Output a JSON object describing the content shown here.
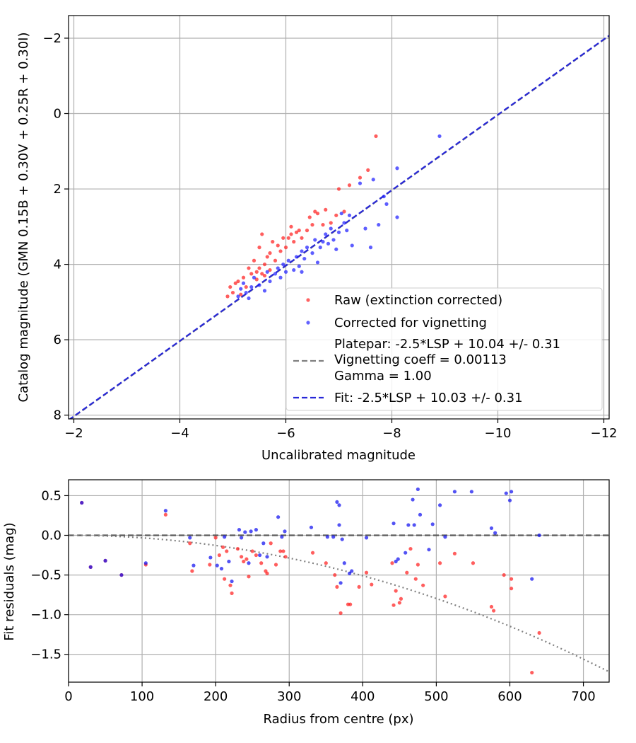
{
  "chart_data": [
    {
      "type": "scatter",
      "xlabel": "Uncalibrated magnitude",
      "ylabel": "Catalog magnitude (GMN 0.15B + 0.30V + 0.25R + 0.30I)",
      "xlim": [
        -1.9,
        -12.1
      ],
      "ylim": [
        8.1,
        -2.6
      ],
      "xticks": [
        -2,
        -4,
        -6,
        -8,
        -10,
        -12
      ],
      "xtick_labels": [
        "−2",
        "−4",
        "−6",
        "−8",
        "−10",
        "−12"
      ],
      "yticks": [
        -2,
        0,
        2,
        4,
        6,
        8
      ],
      "ytick_labels": [
        "−2",
        "0",
        "2",
        "4",
        "6",
        "8"
      ],
      "grid": true,
      "legend": {
        "position": "bottom-right",
        "entries": [
          "Raw (extinction corrected)",
          "Corrected for vignetting",
          "Platepar: -2.5*LSP + 10.04 +/- 0.31",
          "Vignetting coeff = 0.00113",
          "Gamma = 1.00",
          "Fit: -2.5*LSP + 10.03 +/- 0.31"
        ]
      },
      "series": [
        {
          "name": "Raw (extinction corrected)",
          "color": "#ff2020",
          "points": [
            [
              -7.7,
              0.6
            ],
            [
              -7.55,
              1.5
            ],
            [
              -7.4,
              1.7
            ],
            [
              -7.2,
              1.9
            ],
            [
              -7.0,
              2.0
            ],
            [
              -7.1,
              2.6
            ],
            [
              -6.95,
              2.7
            ],
            [
              -6.85,
              2.9
            ],
            [
              -6.75,
              2.55
            ],
            [
              -6.7,
              2.95
            ],
            [
              -6.6,
              2.65
            ],
            [
              -6.55,
              2.6
            ],
            [
              -6.5,
              2.95
            ],
            [
              -6.45,
              2.75
            ],
            [
              -6.4,
              3.1
            ],
            [
              -6.3,
              3.3
            ],
            [
              -6.25,
              3.1
            ],
            [
              -6.2,
              3.15
            ],
            [
              -6.15,
              3.4
            ],
            [
              -6.1,
              3.2
            ],
            [
              -6.1,
              3.0
            ],
            [
              -6.05,
              3.3
            ],
            [
              -6.0,
              3.55
            ],
            [
              -5.95,
              3.3
            ],
            [
              -5.9,
              3.65
            ],
            [
              -5.85,
              3.5
            ],
            [
              -5.8,
              3.9
            ],
            [
              -5.75,
              3.4
            ],
            [
              -5.7,
              3.7
            ],
            [
              -5.7,
              4.15
            ],
            [
              -5.65,
              3.8
            ],
            [
              -5.6,
              4.0
            ],
            [
              -5.55,
              4.25
            ],
            [
              -5.5,
              3.55
            ],
            [
              -5.5,
              4.1
            ],
            [
              -5.45,
              4.4
            ],
            [
              -5.4,
              3.9
            ],
            [
              -5.35,
              4.25
            ],
            [
              -5.3,
              4.1
            ],
            [
              -5.25,
              4.6
            ],
            [
              -5.2,
              4.35
            ],
            [
              -5.15,
              4.8
            ],
            [
              -5.1,
              4.45
            ],
            [
              -5.05,
              4.5
            ],
            [
              -5.0,
              4.75
            ],
            [
              -4.95,
              4.6
            ],
            [
              -4.9,
              4.85
            ],
            [
              -5.45,
              4.2
            ],
            [
              -5.6,
              4.3
            ],
            [
              -5.55,
              3.2
            ]
          ]
        },
        {
          "name": "Corrected for vignetting",
          "color": "#2020ff",
          "points": [
            [
              -8.9,
              0.6
            ],
            [
              -8.1,
              1.45
            ],
            [
              -7.65,
              1.75
            ],
            [
              -7.4,
              1.85
            ],
            [
              -7.85,
              2.2
            ],
            [
              -7.9,
              2.4
            ],
            [
              -8.1,
              2.75
            ],
            [
              -7.75,
              2.95
            ],
            [
              -7.5,
              3.05
            ],
            [
              -7.2,
              2.7
            ],
            [
              -7.15,
              3.1
            ],
            [
              -7.1,
              2.9
            ],
            [
              -7.05,
              2.65
            ],
            [
              -7.0,
              3.15
            ],
            [
              -6.9,
              3.35
            ],
            [
              -6.85,
              3.05
            ],
            [
              -6.8,
              3.45
            ],
            [
              -6.75,
              3.2
            ],
            [
              -6.65,
              3.55
            ],
            [
              -6.55,
              3.35
            ],
            [
              -6.5,
              3.7
            ],
            [
              -6.4,
              3.55
            ],
            [
              -6.35,
              3.85
            ],
            [
              -6.3,
              3.65
            ],
            [
              -6.25,
              4.05
            ],
            [
              -6.2,
              3.8
            ],
            [
              -6.15,
              4.15
            ],
            [
              -6.05,
              3.9
            ],
            [
              -6.0,
              4.2
            ],
            [
              -5.95,
              4.0
            ],
            [
              -5.9,
              4.35
            ],
            [
              -5.85,
              4.1
            ],
            [
              -5.8,
              4.25
            ],
            [
              -5.7,
              4.45
            ],
            [
              -5.65,
              4.2
            ],
            [
              -5.6,
              4.7
            ],
            [
              -5.5,
              4.55
            ],
            [
              -5.4,
              4.35
            ],
            [
              -5.35,
              4.6
            ],
            [
              -5.3,
              4.9
            ],
            [
              -5.25,
              4.75
            ],
            [
              -5.2,
              4.5
            ],
            [
              -5.15,
              4.65
            ],
            [
              -5.1,
              4.85
            ],
            [
              -6.3,
              4.2
            ],
            [
              -6.7,
              3.4
            ],
            [
              -7.25,
              3.5
            ],
            [
              -6.95,
              3.6
            ],
            [
              -7.6,
              3.55
            ],
            [
              -6.6,
              3.95
            ]
          ]
        }
      ],
      "lines": [
        {
          "name": "Platepar: -2.5*LSP + 10.04 +/- 0.31",
          "style": "dashed",
          "color": "#808080",
          "x": [
            -1.9,
            -12.1
          ],
          "y": [
            8.14,
            -2.06
          ]
        },
        {
          "name": "Fit: -2.5*LSP + 10.03 +/- 0.31",
          "style": "dashed",
          "color": "#2828d8",
          "x": [
            -1.9,
            -12.1
          ],
          "y": [
            8.13,
            -2.07
          ]
        }
      ]
    },
    {
      "type": "scatter",
      "xlabel": "Radius from centre (px)",
      "ylabel": "Fit residuals (mag)",
      "xlim": [
        0,
        735
      ],
      "ylim": [
        -1.85,
        0.7
      ],
      "xticks": [
        0,
        100,
        200,
        300,
        400,
        500,
        600,
        700
      ],
      "xtick_labels": [
        "0",
        "100",
        "200",
        "300",
        "400",
        "500",
        "600",
        "700"
      ],
      "yticks": [
        0.5,
        0.0,
        -0.5,
        -1.0,
        -1.5
      ],
      "ytick_labels": [
        "0.5",
        "0.0",
        "−0.5",
        "−1.0",
        "−1.5"
      ],
      "grid": true,
      "series": [
        {
          "name": "Raw",
          "color": "#ff2020",
          "points": [
            [
              18,
              0.41
            ],
            [
              30,
              -0.4
            ],
            [
              50,
              -0.32
            ],
            [
              72,
              -0.5
            ],
            [
              105,
              -0.37
            ],
            [
              132,
              0.26
            ],
            [
              165,
              -0.1
            ],
            [
              168,
              -0.45
            ],
            [
              192,
              -0.37
            ],
            [
              200,
              -0.03
            ],
            [
              205,
              -0.25
            ],
            [
              210,
              -0.15
            ],
            [
              212,
              -0.55
            ],
            [
              215,
              -0.2
            ],
            [
              220,
              -0.63
            ],
            [
              222,
              -0.73
            ],
            [
              230,
              -0.17
            ],
            [
              235,
              -0.27
            ],
            [
              238,
              -0.33
            ],
            [
              242,
              -0.3
            ],
            [
              245,
              -0.52
            ],
            [
              250,
              -0.2
            ],
            [
              255,
              -0.25
            ],
            [
              262,
              -0.35
            ],
            [
              268,
              -0.45
            ],
            [
              270,
              -0.48
            ],
            [
              275,
              -0.1
            ],
            [
              282,
              -0.37
            ],
            [
              288,
              -0.2
            ],
            [
              292,
              -0.2
            ],
            [
              295,
              -0.27
            ],
            [
              332,
              -0.22
            ],
            [
              350,
              -0.35
            ],
            [
              362,
              -0.5
            ],
            [
              365,
              -0.65
            ],
            [
              370,
              -0.98
            ],
            [
              380,
              -0.87
            ],
            [
              383,
              -0.87
            ],
            [
              395,
              -0.65
            ],
            [
              405,
              -0.47
            ],
            [
              412,
              -0.62
            ],
            [
              440,
              -0.35
            ],
            [
              442,
              -0.88
            ],
            [
              445,
              -0.7
            ],
            [
              450,
              -0.85
            ],
            [
              452,
              -0.8
            ],
            [
              460,
              -0.47
            ],
            [
              465,
              -0.17
            ],
            [
              472,
              -0.55
            ],
            [
              475,
              -0.37
            ],
            [
              482,
              -0.63
            ],
            [
              505,
              -0.35
            ],
            [
              512,
              -0.77
            ],
            [
              525,
              -0.23
            ],
            [
              550,
              -0.35
            ],
            [
              575,
              -0.9
            ],
            [
              578,
              -0.95
            ],
            [
              592,
              -0.5
            ],
            [
              602,
              -0.55
            ],
            [
              602,
              -0.67
            ],
            [
              630,
              -1.73
            ],
            [
              640,
              -1.23
            ]
          ]
        },
        {
          "name": "Corrected",
          "color": "#1010f0",
          "points": [
            [
              18,
              0.41
            ],
            [
              30,
              -0.4
            ],
            [
              50,
              -0.32
            ],
            [
              72,
              -0.5
            ],
            [
              105,
              -0.35
            ],
            [
              132,
              0.31
            ],
            [
              165,
              -0.03
            ],
            [
              170,
              -0.38
            ],
            [
              193,
              -0.28
            ],
            [
              202,
              -0.38
            ],
            [
              208,
              -0.42
            ],
            [
              212,
              -0.02
            ],
            [
              218,
              -0.33
            ],
            [
              222,
              -0.58
            ],
            [
              232,
              0.07
            ],
            [
              235,
              -0.03
            ],
            [
              240,
              0.04
            ],
            [
              245,
              -0.35
            ],
            [
              248,
              0.05
            ],
            [
              255,
              0.07
            ],
            [
              260,
              -0.25
            ],
            [
              265,
              -0.1
            ],
            [
              270,
              -0.27
            ],
            [
              285,
              0.23
            ],
            [
              290,
              -0.02
            ],
            [
              294,
              0.05
            ],
            [
              330,
              0.1
            ],
            [
              352,
              -0.02
            ],
            [
              360,
              -0.02
            ],
            [
              365,
              0.42
            ],
            [
              368,
              0.38
            ],
            [
              368,
              0.13
            ],
            [
              370,
              -0.6
            ],
            [
              372,
              -0.05
            ],
            [
              375,
              -0.35
            ],
            [
              382,
              -0.48
            ],
            [
              385,
              -0.45
            ],
            [
              405,
              -0.03
            ],
            [
              442,
              0.15
            ],
            [
              445,
              -0.33
            ],
            [
              448,
              -0.3
            ],
            [
              458,
              -0.22
            ],
            [
              462,
              0.13
            ],
            [
              468,
              0.45
            ],
            [
              470,
              0.13
            ],
            [
              475,
              0.58
            ],
            [
              478,
              0.26
            ],
            [
              490,
              -0.18
            ],
            [
              495,
              0.14
            ],
            [
              505,
              0.38
            ],
            [
              512,
              -0.02
            ],
            [
              525,
              0.55
            ],
            [
              548,
              0.55
            ],
            [
              575,
              0.09
            ],
            [
              580,
              0.03
            ],
            [
              595,
              0.53
            ],
            [
              600,
              0.44
            ],
            [
              602,
              0.55
            ],
            [
              630,
              -0.55
            ],
            [
              640,
              0.0
            ]
          ]
        }
      ],
      "lines": [
        {
          "name": "zero",
          "style": "dashed",
          "color": "#5a5a5a",
          "x": [
            0,
            735
          ],
          "y": [
            0,
            0
          ]
        },
        {
          "name": "vignetting model",
          "style": "dotted",
          "color": "#808080",
          "coeff": 0.00113,
          "x": [
            0,
            735
          ],
          "y": [
            0,
            -1.72
          ]
        }
      ]
    }
  ]
}
